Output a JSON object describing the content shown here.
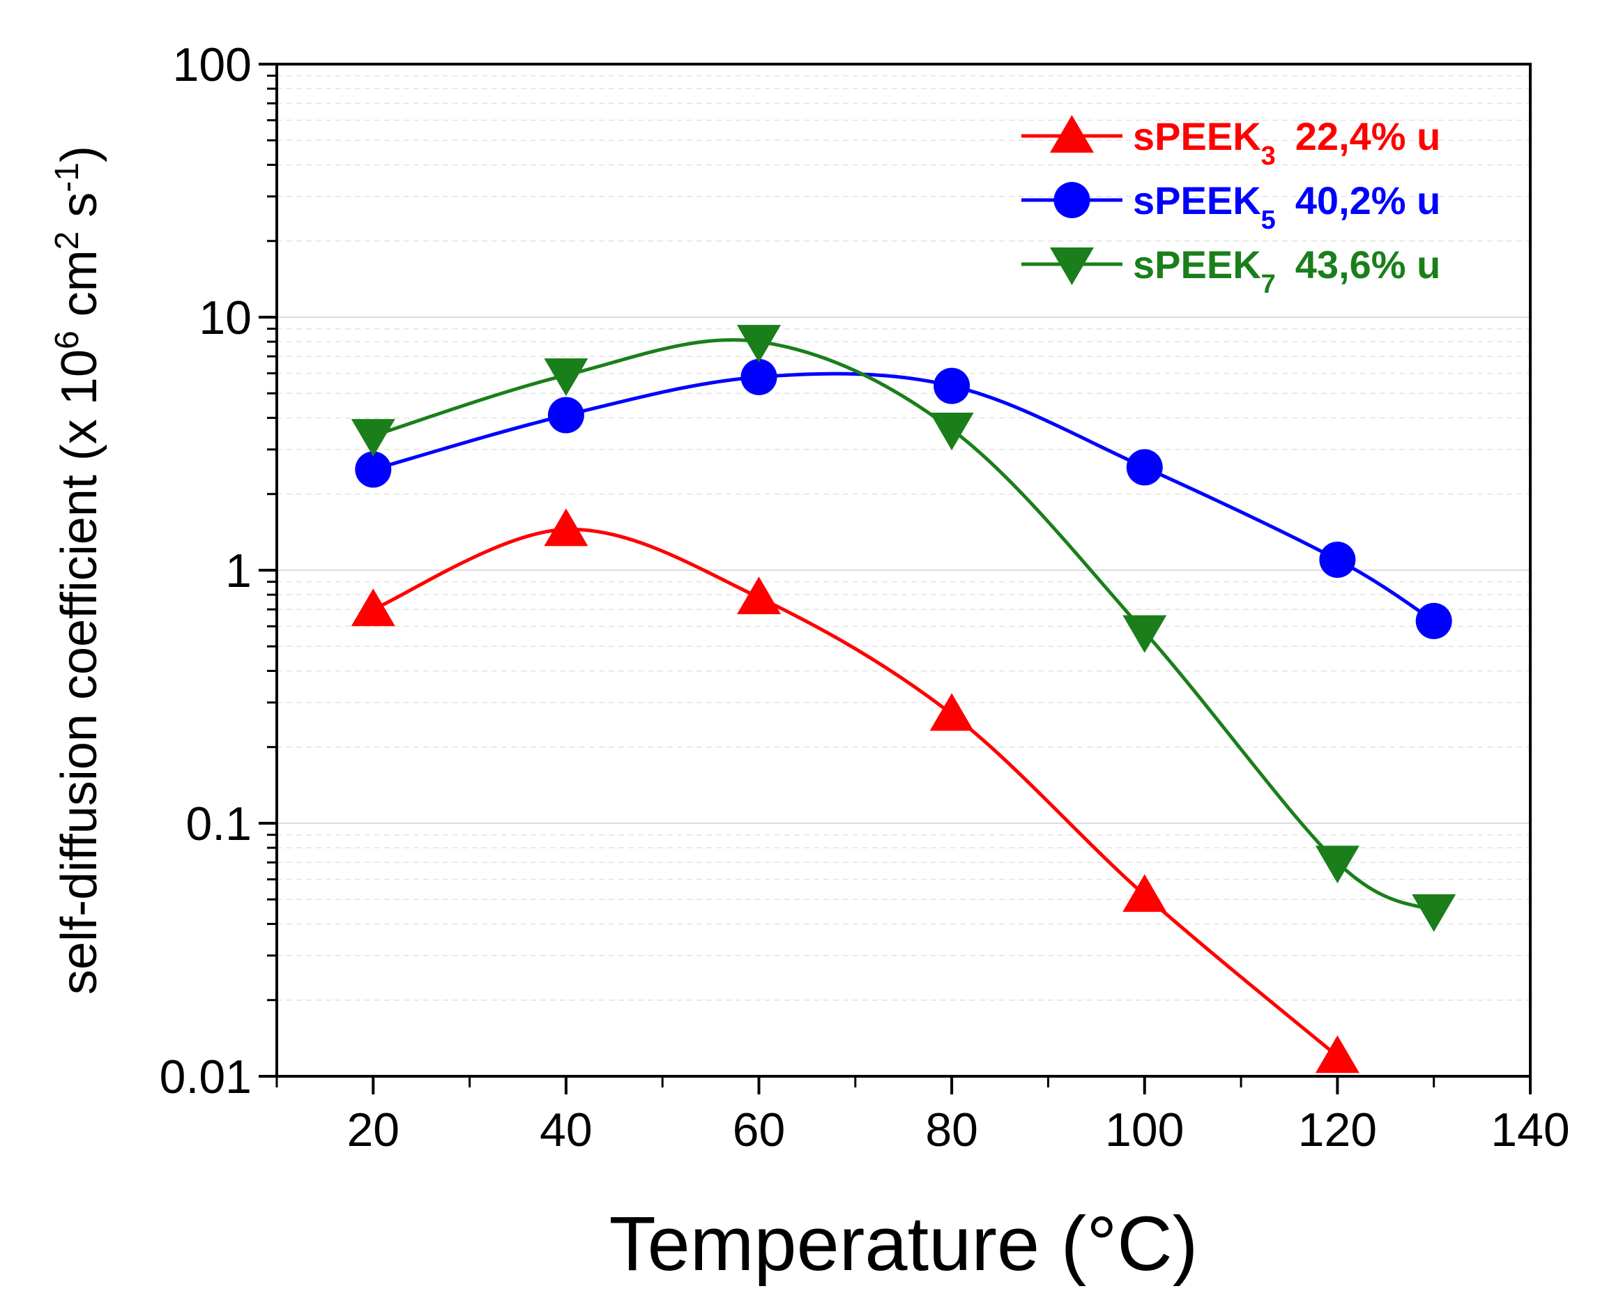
{
  "chart_data": {
    "type": "line",
    "xlabel": "Temperature (°C)",
    "ylabel_parts": {
      "main": "self-diffusion coefficient (x 10",
      "exp1": "6",
      "mid1": " cm",
      "exp2": "2",
      "mid2": " s",
      "exp3": "-1",
      "end": ")"
    },
    "xlim": [
      10,
      140
    ],
    "ylim": [
      0.01,
      100
    ],
    "yscale": "log",
    "grid": "minor-y",
    "legend_position": "top-right",
    "x_ticks": [
      "20",
      "40",
      "60",
      "80",
      "100",
      "120",
      "140"
    ],
    "y_ticks": [
      "0.01",
      "0.1",
      "1",
      "10",
      "100"
    ],
    "series": [
      {
        "name": "sPEEK",
        "subscript": "3",
        "note": "22,4% u",
        "color": "#ff0000",
        "marker": "triangle-up",
        "x": [
          20,
          40,
          60,
          80,
          100,
          120
        ],
        "y": [
          0.7,
          1.45,
          0.78,
          0.27,
          0.052,
          0.012
        ]
      },
      {
        "name": "sPEEK",
        "subscript": "5",
        "note": "40,2% u",
        "color": "#0000ff",
        "marker": "circle",
        "x": [
          20,
          40,
          60,
          80,
          100,
          120,
          130
        ],
        "y": [
          2.5,
          4.1,
          5.8,
          5.35,
          2.55,
          1.1,
          0.63
        ]
      },
      {
        "name": "sPEEK",
        "subscript": "7",
        "note": "43,6% u",
        "color": "#1a7f1a",
        "marker": "triangle-down",
        "x": [
          20,
          40,
          60,
          80,
          100,
          120,
          130
        ],
        "y": [
          3.4,
          5.9,
          8.0,
          3.6,
          0.57,
          0.07,
          0.045
        ]
      }
    ]
  }
}
